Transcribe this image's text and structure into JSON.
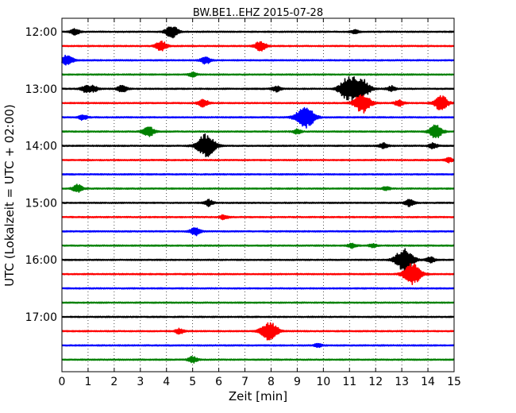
{
  "chart_data": {
    "type": "line",
    "title": "BW.BE1..EHZ 2015-07-28",
    "xlabel": "Zeit  [min]",
    "ylabel": "UTC (Lokalzeit = UTC + 02:00)",
    "xlim": [
      0,
      15
    ],
    "x_ticks": [
      "0",
      "1",
      "2",
      "3",
      "4",
      "5",
      "6",
      "7",
      "8",
      "9",
      "10",
      "11",
      "12",
      "13",
      "14",
      "15"
    ],
    "y_ticks": [
      "12:00",
      "13:00",
      "14:00",
      "15:00",
      "16:00",
      "17:00"
    ],
    "y_tick_row_index": [
      0,
      4,
      8,
      12,
      16,
      20
    ],
    "grid": true,
    "grid_style": "dotted",
    "trace_interval_minutes": 15,
    "trace_colors": [
      "#000000",
      "#ff0000",
      "#0000ff",
      "#008000"
    ],
    "rows": [
      {
        "start": "12:00",
        "events": [
          {
            "t": 0.5,
            "a": 0.35
          },
          {
            "t": 4.2,
            "a": 0.7
          },
          {
            "t": 11.2,
            "a": 0.2
          }
        ]
      },
      {
        "start": "12:15",
        "events": [
          {
            "t": 3.8,
            "a": 0.55
          },
          {
            "t": 7.6,
            "a": 0.55
          }
        ]
      },
      {
        "start": "12:30",
        "events": [
          {
            "t": 0.2,
            "a": 0.6
          },
          {
            "t": 5.5,
            "a": 0.4
          }
        ]
      },
      {
        "start": "12:45",
        "events": [
          {
            "t": 5.0,
            "a": 0.25
          }
        ]
      },
      {
        "start": "13:00",
        "events": [
          {
            "t": 0.9,
            "a": 0.35
          },
          {
            "t": 1.2,
            "a": 0.35
          },
          {
            "t": 2.3,
            "a": 0.4
          },
          {
            "t": 8.2,
            "a": 0.3
          },
          {
            "t": 10.9,
            "a": 1.1
          },
          {
            "t": 11.4,
            "a": 1.3
          },
          {
            "t": 12.6,
            "a": 0.3
          }
        ]
      },
      {
        "start": "13:15",
        "events": [
          {
            "t": 5.4,
            "a": 0.45
          },
          {
            "t": 11.5,
            "a": 1.1
          },
          {
            "t": 12.9,
            "a": 0.35
          },
          {
            "t": 14.5,
            "a": 0.85
          }
        ]
      },
      {
        "start": "13:30",
        "events": [
          {
            "t": 0.8,
            "a": 0.3
          },
          {
            "t": 9.3,
            "a": 1.3
          }
        ]
      },
      {
        "start": "13:45",
        "events": [
          {
            "t": 3.3,
            "a": 0.6
          },
          {
            "t": 9.0,
            "a": 0.25
          },
          {
            "t": 14.3,
            "a": 0.75
          }
        ]
      },
      {
        "start": "14:00",
        "events": [
          {
            "t": 5.5,
            "a": 1.3
          },
          {
            "t": 12.3,
            "a": 0.3
          },
          {
            "t": 14.2,
            "a": 0.3
          }
        ]
      },
      {
        "start": "14:15",
        "events": [
          {
            "t": 14.8,
            "a": 0.25
          }
        ]
      },
      {
        "start": "14:30",
        "events": []
      },
      {
        "start": "14:45",
        "events": [
          {
            "t": 0.6,
            "a": 0.45
          },
          {
            "t": 12.4,
            "a": 0.2
          }
        ]
      },
      {
        "start": "15:00",
        "events": [
          {
            "t": 5.6,
            "a": 0.35
          },
          {
            "t": 13.3,
            "a": 0.4
          }
        ]
      },
      {
        "start": "15:15",
        "events": [
          {
            "t": 6.2,
            "a": 0.25
          }
        ]
      },
      {
        "start": "15:30",
        "events": [
          {
            "t": 5.1,
            "a": 0.45
          }
        ]
      },
      {
        "start": "15:45",
        "events": [
          {
            "t": 11.1,
            "a": 0.25
          },
          {
            "t": 11.9,
            "a": 0.2
          }
        ]
      },
      {
        "start": "16:00",
        "events": [
          {
            "t": 13.1,
            "a": 1.3
          },
          {
            "t": 14.1,
            "a": 0.3
          }
        ]
      },
      {
        "start": "16:15",
        "events": [
          {
            "t": 13.4,
            "a": 1.2
          }
        ]
      },
      {
        "start": "16:30",
        "events": []
      },
      {
        "start": "16:45",
        "events": []
      },
      {
        "start": "17:00",
        "events": []
      },
      {
        "start": "17:15",
        "events": [
          {
            "t": 4.5,
            "a": 0.3
          },
          {
            "t": 7.8,
            "a": 0.8
          },
          {
            "t": 8.1,
            "a": 0.6
          }
        ]
      },
      {
        "start": "17:30",
        "events": [
          {
            "t": 9.8,
            "a": 0.2
          }
        ]
      },
      {
        "start": "17:45",
        "events": [
          {
            "t": 5.0,
            "a": 0.35
          }
        ]
      }
    ]
  }
}
